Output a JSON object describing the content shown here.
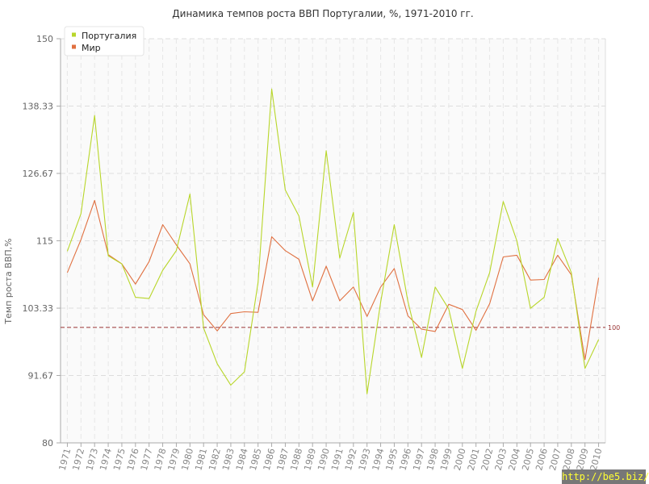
{
  "chart_data": {
    "type": "line",
    "title": "Динамика темпов роста ВВП Португалии, %, 1971-2010 гг.",
    "ylabel": "Темп роста ВВП,%",
    "xlabel": "",
    "ylim": [
      80,
      150
    ],
    "yticks": [
      "80",
      "91.67",
      "103.33",
      "115",
      "126.67",
      "138.33",
      "150"
    ],
    "ytick_values": [
      80,
      91.67,
      103.33,
      115,
      126.67,
      138.33,
      150
    ],
    "categories": [
      "1971",
      "1972",
      "1973",
      "1974",
      "1975",
      "1976",
      "1977",
      "1978",
      "1979",
      "1980",
      "1981",
      "1982",
      "1983",
      "1984",
      "1985",
      "1986",
      "1987",
      "1988",
      "1989",
      "1990",
      "1991",
      "1992",
      "1993",
      "1994",
      "1995",
      "1996",
      "1997",
      "1998",
      "1999",
      "2000",
      "2001",
      "2002",
      "2003",
      "2004",
      "2005",
      "2006",
      "2007",
      "2008",
      "2009",
      "2010"
    ],
    "series": [
      {
        "name": "Португалия",
        "color": "#b8d62a",
        "values": [
          113.2,
          119.7,
          136.7,
          112.4,
          111.0,
          105.2,
          105.0,
          109.9,
          113.3,
          123.1,
          99.9,
          93.7,
          90.0,
          92.3,
          107.8,
          141.3,
          123.8,
          119.3,
          107.0,
          130.6,
          112.0,
          119.9,
          88.5,
          104.4,
          117.8,
          104.5,
          94.8,
          107.0,
          103.2,
          92.9,
          102.8,
          109.5,
          121.8,
          115.0,
          103.3,
          105.2,
          115.4,
          109.5,
          92.9,
          97.9
        ]
      },
      {
        "name": "Мир",
        "color": "#e07040",
        "values": [
          109.5,
          115.2,
          122.0,
          112.6,
          111.0,
          107.5,
          111.4,
          117.8,
          114.3,
          111.0,
          102.2,
          99.4,
          102.4,
          102.7,
          102.6,
          115.7,
          113.3,
          111.8,
          104.6,
          110.6,
          104.6,
          107.0,
          101.9,
          107.0,
          110.2,
          102.0,
          99.7,
          99.3,
          104.0,
          103.1,
          99.5,
          104.1,
          112.2,
          112.5,
          108.2,
          108.3,
          112.5,
          109.1,
          94.4,
          108.6
        ]
      }
    ],
    "reference_line": {
      "value": 100,
      "label": "100",
      "color": "#993333",
      "style": "dashed"
    },
    "grid": true,
    "legend_position": "top-left"
  },
  "watermark": "http://be5.biz/"
}
